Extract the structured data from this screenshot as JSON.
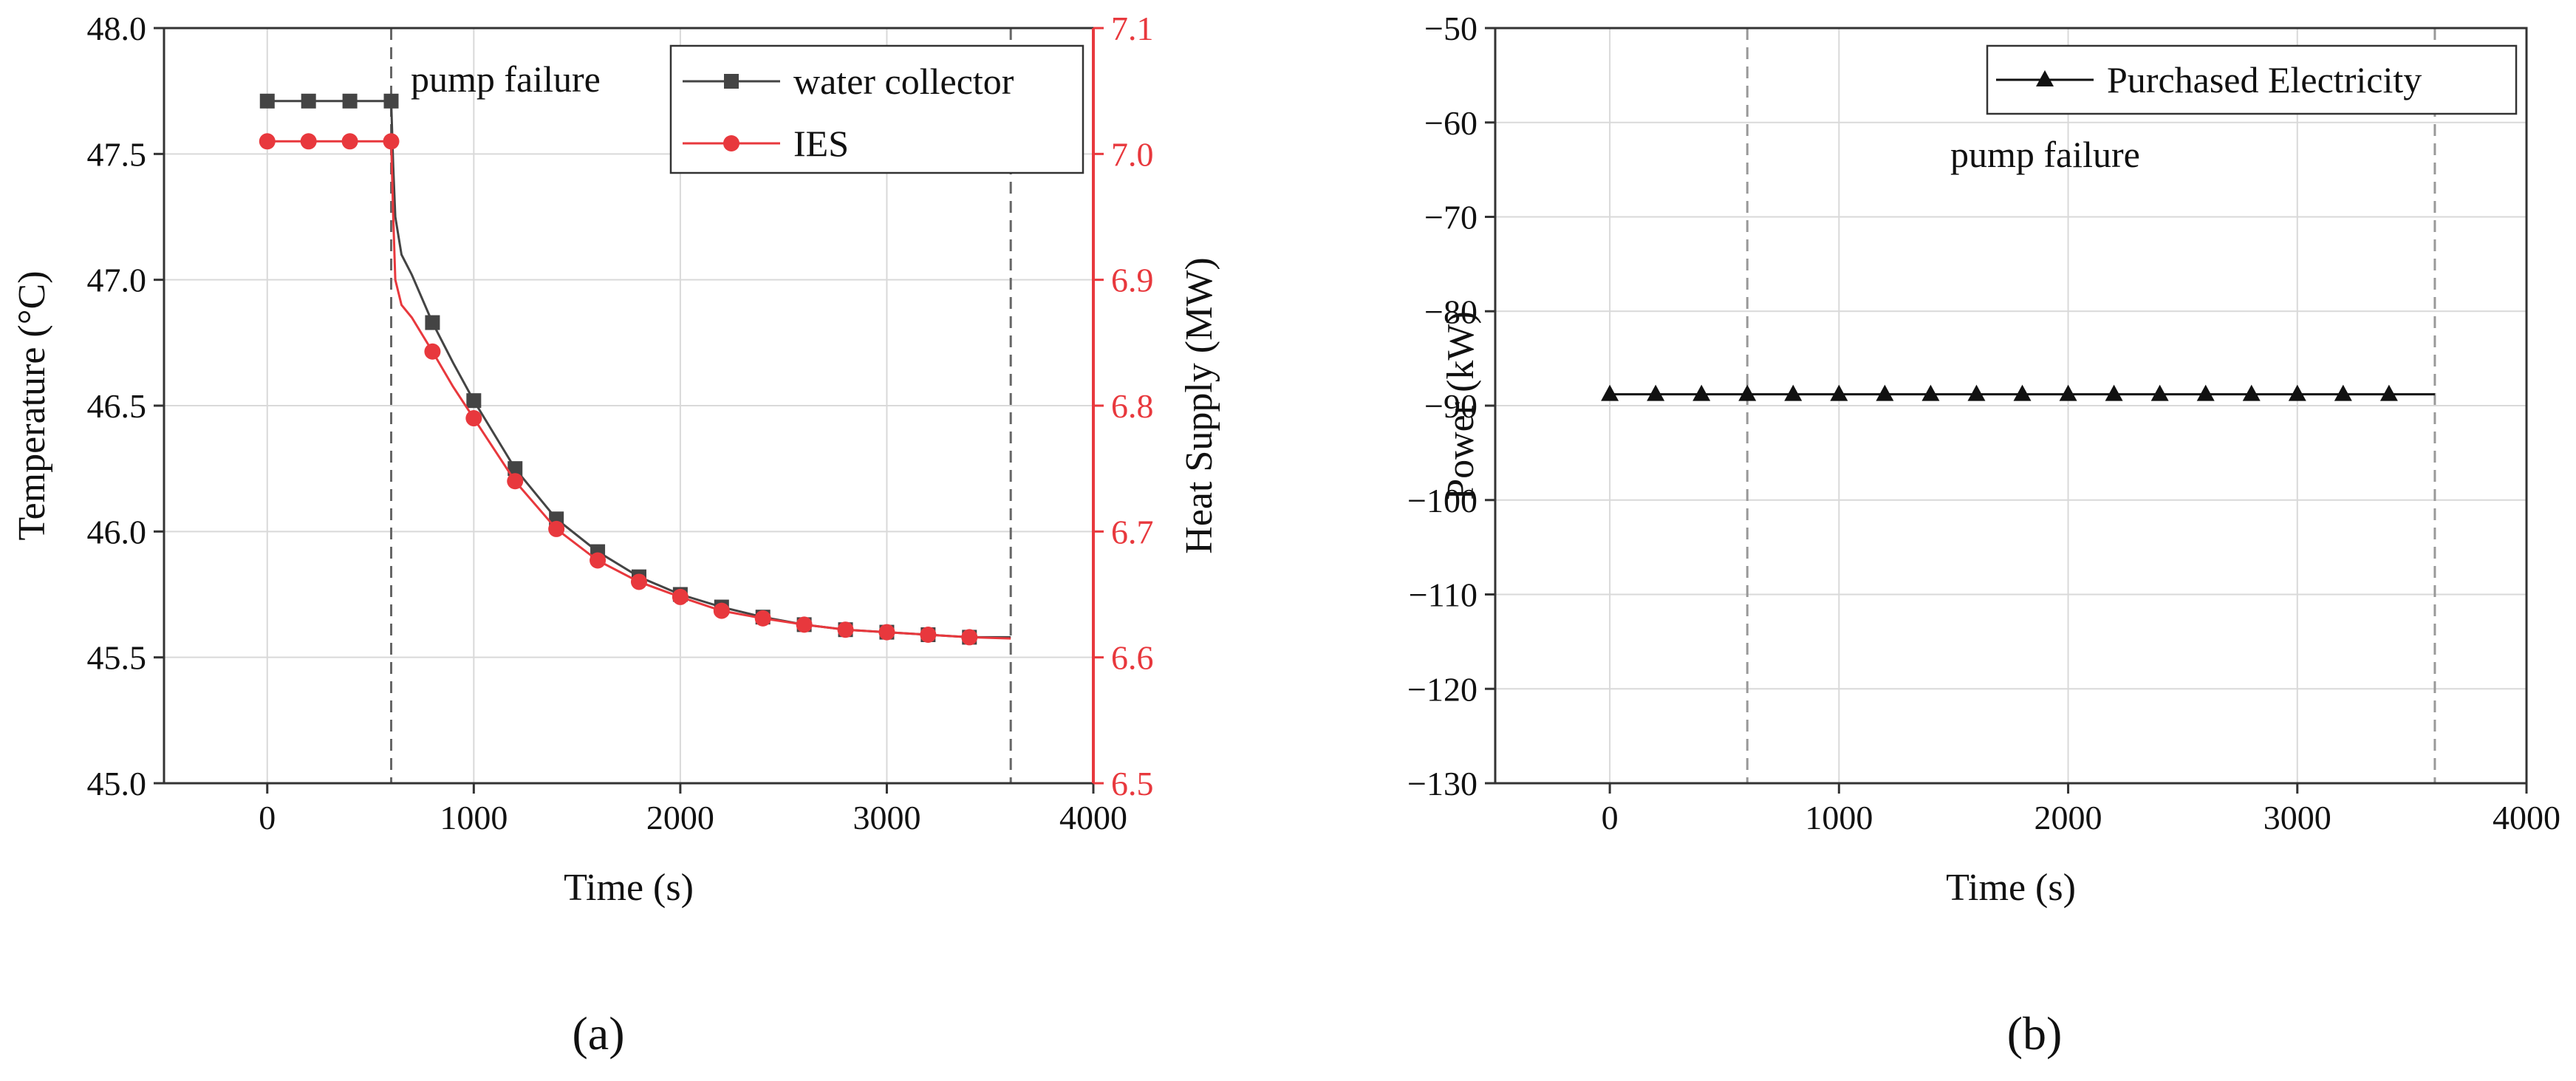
{
  "colors": {
    "black": "#444444",
    "red": "#e8383d",
    "grid": "#d9d9d9",
    "axis": "#333333",
    "vline": "#666666"
  },
  "chart_data": [
    {
      "id": "a",
      "type": "line",
      "panel_label": "(a)",
      "xlabel": "Time (s)",
      "ylabel_left": "Temperature (°C)",
      "ylabel_right": "Heat Supply (MW)",
      "xlim": [
        -500,
        4000
      ],
      "xticks": [
        0,
        1000,
        2000,
        3000,
        4000
      ],
      "xtick_labels": [
        "0",
        "1000",
        "2000",
        "3000",
        "4000"
      ],
      "ylim_left": [
        45.0,
        48.0
      ],
      "yticks_left": [
        45.0,
        45.5,
        46.0,
        46.5,
        47.0,
        47.5,
        48.0
      ],
      "ytick_labels_left": [
        "45.0",
        "45.5",
        "46.0",
        "46.5",
        "47.0",
        "47.5",
        "48.0"
      ],
      "ylim_right": [
        6.5,
        7.1
      ],
      "yticks_right": [
        6.5,
        6.6,
        6.7,
        6.8,
        6.9,
        7.0,
        7.1
      ],
      "ytick_labels_right": [
        "6.5",
        "6.6",
        "6.7",
        "6.8",
        "6.9",
        "7.0",
        "7.1"
      ],
      "vlines": [
        600,
        3600
      ],
      "annotation": "pump failure",
      "legend_position": "top-right",
      "series": [
        {
          "name": "water collector",
          "axis": "left",
          "color": "#444444",
          "marker": "square",
          "line_x": [
            0,
            200,
            400,
            600,
            610,
            620,
            650,
            700,
            800,
            900,
            1000,
            1200,
            1400,
            1600,
            1800,
            2000,
            2200,
            2400,
            2600,
            2800,
            3000,
            3200,
            3400,
            3600
          ],
          "line_y": [
            47.71,
            47.71,
            47.71,
            47.71,
            47.45,
            47.25,
            47.1,
            47.02,
            46.83,
            46.67,
            46.52,
            46.25,
            46.05,
            45.92,
            45.82,
            45.75,
            45.7,
            45.66,
            45.63,
            45.61,
            45.6,
            45.59,
            45.58,
            45.58
          ],
          "marker_x": [
            0,
            200,
            400,
            600,
            800,
            1000,
            1200,
            1400,
            1600,
            1800,
            2000,
            2200,
            2400,
            2600,
            2800,
            3000,
            3200,
            3400
          ],
          "marker_y": [
            47.71,
            47.71,
            47.71,
            47.71,
            46.83,
            46.52,
            46.25,
            46.05,
            45.92,
            45.82,
            45.75,
            45.7,
            45.66,
            45.63,
            45.61,
            45.6,
            45.59,
            45.58
          ]
        },
        {
          "name": "IES",
          "axis": "right",
          "color": "#e8383d",
          "marker": "circle",
          "line_x": [
            0,
            200,
            400,
            600,
            610,
            620,
            650,
            700,
            800,
            900,
            1000,
            1200,
            1400,
            1600,
            1800,
            2000,
            2200,
            2400,
            2600,
            2800,
            3000,
            3200,
            3400,
            3600
          ],
          "line_y": [
            7.01,
            7.01,
            7.01,
            7.01,
            6.95,
            6.9,
            6.88,
            6.87,
            6.843,
            6.815,
            6.79,
            6.74,
            6.702,
            6.677,
            6.66,
            6.648,
            6.637,
            6.631,
            6.626,
            6.622,
            6.62,
            6.618,
            6.616,
            6.615
          ],
          "marker_x": [
            0,
            200,
            400,
            600,
            800,
            1000,
            1200,
            1400,
            1600,
            1800,
            2000,
            2200,
            2400,
            2600,
            2800,
            3000,
            3200,
            3400
          ],
          "marker_y": [
            7.01,
            7.01,
            7.01,
            7.01,
            6.843,
            6.79,
            6.74,
            6.702,
            6.677,
            6.66,
            6.648,
            6.637,
            6.631,
            6.626,
            6.622,
            6.62,
            6.618,
            6.616
          ]
        }
      ]
    },
    {
      "id": "b",
      "type": "line",
      "panel_label": "(b)",
      "xlabel": "Time (s)",
      "ylabel": "Power (kW)",
      "xlim": [
        -500,
        4000
      ],
      "xticks": [
        0,
        1000,
        2000,
        3000,
        4000
      ],
      "xtick_labels": [
        "0",
        "1000",
        "2000",
        "3000",
        "4000"
      ],
      "ylim": [
        -130,
        -50
      ],
      "yticks": [
        -130,
        -120,
        -110,
        -100,
        -90,
        -80,
        -70,
        -60,
        -50
      ],
      "ytick_labels": [
        "−130",
        "−120",
        "−110",
        "−100",
        "−90",
        "−80",
        "−70",
        "−60",
        "−50"
      ],
      "vlines": [
        600,
        3600
      ],
      "annotation": "pump failure",
      "legend_position": "top-right",
      "series": [
        {
          "name": "Purchased Electricity",
          "color": "#111111",
          "marker": "triangle",
          "line_x": [
            0,
            3600
          ],
          "line_y": [
            -88.8,
            -88.8
          ],
          "marker_x": [
            0,
            200,
            400,
            600,
            800,
            1000,
            1200,
            1400,
            1600,
            1800,
            2000,
            2200,
            2400,
            2600,
            2800,
            3000,
            3200,
            3400
          ],
          "marker_y": [
            -88.8,
            -88.8,
            -88.8,
            -88.8,
            -88.8,
            -88.8,
            -88.8,
            -88.8,
            -88.8,
            -88.8,
            -88.8,
            -88.8,
            -88.8,
            -88.8,
            -88.8,
            -88.8,
            -88.8,
            -88.8
          ]
        }
      ]
    }
  ]
}
